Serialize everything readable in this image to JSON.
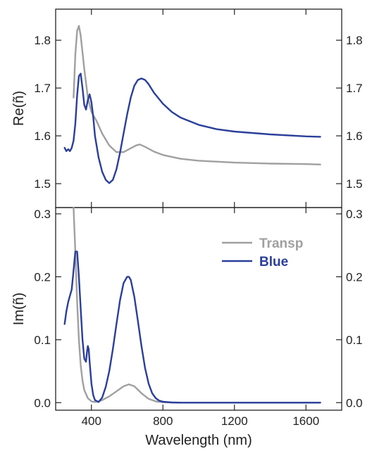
{
  "chart_data": {
    "type": "line",
    "xlabel": "Wavelength (nm)",
    "xlim": [
      200,
      1800
    ],
    "xticks": [
      400,
      800,
      1200,
      1600
    ],
    "legend": {
      "placement": "top-right of lower panel"
    },
    "colors": {
      "Transp": "#a0a0a0",
      "Blue": "#2a3f9a"
    },
    "panels": [
      {
        "id": "re",
        "ylabel": "Re(ñ)",
        "ylim": [
          1.45,
          1.865
        ],
        "yticks": [
          1.5,
          1.6,
          1.7,
          1.8
        ],
        "series": [
          {
            "name": "Transp",
            "x": [
              300,
              310,
              320,
              330,
              340,
              360,
              380,
              400,
              430,
              460,
              500,
              540,
              580,
              620,
              650,
              670,
              700,
              750,
              800,
              900,
              1000,
              1200,
              1400,
              1600,
              1680
            ],
            "y": [
              1.68,
              1.77,
              1.82,
              1.83,
              1.81,
              1.74,
              1.68,
              1.65,
              1.63,
              1.605,
              1.58,
              1.566,
              1.566,
              1.574,
              1.58,
              1.582,
              1.577,
              1.567,
              1.56,
              1.552,
              1.548,
              1.544,
              1.542,
              1.541,
              1.54
            ]
          },
          {
            "name": "Blue",
            "x": [
              250,
              260,
              270,
              280,
              290,
              300,
              310,
              320,
              330,
              340,
              350,
              360,
              370,
              380,
              390,
              400,
              410,
              420,
              440,
              460,
              480,
              500,
              520,
              540,
              560,
              580,
              600,
              620,
              640,
              660,
              680,
              700,
              720,
              750,
              800,
              850,
              900,
              1000,
              1100,
              1200,
              1400,
              1600,
              1680
            ],
            "y": [
              1.575,
              1.568,
              1.572,
              1.568,
              1.575,
              1.59,
              1.625,
              1.685,
              1.725,
              1.73,
              1.7,
              1.665,
              1.655,
              1.675,
              1.687,
              1.67,
              1.64,
              1.6,
              1.555,
              1.525,
              1.508,
              1.501,
              1.508,
              1.53,
              1.565,
              1.605,
              1.645,
              1.68,
              1.705,
              1.717,
              1.72,
              1.717,
              1.708,
              1.69,
              1.667,
              1.65,
              1.638,
              1.623,
              1.614,
              1.609,
              1.603,
              1.599,
              1.598
            ]
          }
        ]
      },
      {
        "id": "im",
        "ylabel": "Im(ñ)",
        "ylim": [
          -0.012,
          0.31
        ],
        "yticks": [
          0.0,
          0.1,
          0.2,
          0.3
        ],
        "yticklabels": [
          "0.0",
          "0.1",
          "0.2",
          "0.3"
        ],
        "series": [
          {
            "name": "Transp",
            "x": [
              300,
              310,
              320,
              330,
              340,
              350,
              360,
              380,
              400,
              420,
              440,
              460,
              500,
              540,
              580,
              610,
              640,
              680,
              720,
              760,
              800,
              900,
              1200,
              1600,
              1680
            ],
            "y": [
              0.31,
              0.24,
              0.16,
              0.1,
              0.06,
              0.035,
              0.02,
              0.007,
              0.002,
              0.001,
              0.002,
              0.004,
              0.01,
              0.018,
              0.026,
              0.029,
              0.026,
              0.015,
              0.006,
              0.002,
              0.0005,
              0.0,
              0.0,
              0.0,
              0.0
            ]
          },
          {
            "name": "Blue",
            "x": [
              250,
              260,
              270,
              280,
              290,
              300,
              310,
              320,
              330,
              340,
              350,
              360,
              370,
              375,
              380,
              385,
              390,
              400,
              410,
              420,
              440,
              460,
              480,
              500,
              520,
              540,
              560,
              580,
              600,
              610,
              620,
              640,
              660,
              680,
              700,
              720,
              740,
              760,
              780,
              800,
              850,
              900,
              1000,
              1200,
              1600,
              1680
            ],
            "y": [
              0.125,
              0.145,
              0.16,
              0.17,
              0.18,
              0.21,
              0.24,
              0.24,
              0.2,
              0.15,
              0.1,
              0.07,
              0.065,
              0.08,
              0.09,
              0.085,
              0.065,
              0.03,
              0.012,
              0.004,
              0.001,
              0.008,
              0.025,
              0.05,
              0.085,
              0.125,
              0.163,
              0.19,
              0.2,
              0.2,
              0.195,
              0.168,
              0.13,
              0.09,
              0.055,
              0.03,
              0.015,
              0.007,
              0.003,
              0.0015,
              0.0003,
              0.0,
              0.0,
              0.0,
              0.0,
              0.0
            ]
          }
        ]
      }
    ]
  }
}
